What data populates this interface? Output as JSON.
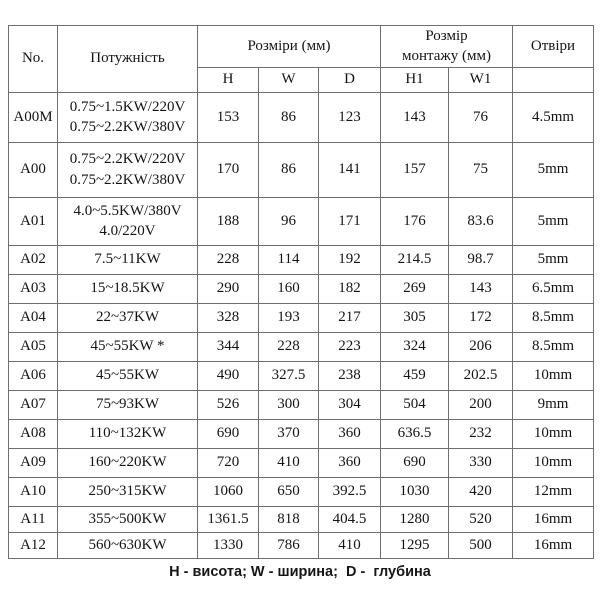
{
  "table": {
    "headers": {
      "no": "No.",
      "power": "Потужність",
      "dimensions": "Розміри (мм)",
      "mounting": "Розмір\nмонтажу (мм)",
      "holes": "Отвіри",
      "h": "H",
      "w": "W",
      "d": "D",
      "h1": "H1",
      "w1": "W1"
    },
    "rows": [
      {
        "no": "A00M",
        "power": "0.75~1.5KW/220V\n0.75~2.2KW/380V",
        "h": "153",
        "w": "86",
        "d": "123",
        "h1": "143",
        "w1": "76",
        "holes": "4.5mm"
      },
      {
        "no": "A00",
        "power": "0.75~2.2KW/220V\n0.75~2.2KW/380V",
        "h": "170",
        "w": "86",
        "d": "141",
        "h1": "157",
        "w1": "75",
        "holes": "5mm"
      },
      {
        "no": "A01",
        "power": "4.0~5.5KW/380V\n4.0/220V",
        "h": "188",
        "w": "96",
        "d": "171",
        "h1": "176",
        "w1": "83.6",
        "holes": "5mm"
      },
      {
        "no": "A02",
        "power": "7.5~11KW",
        "h": "228",
        "w": "114",
        "d": "192",
        "h1": "214.5",
        "w1": "98.7",
        "holes": "5mm"
      },
      {
        "no": "A03",
        "power": "15~18.5KW",
        "h": "290",
        "w": "160",
        "d": "182",
        "h1": "269",
        "w1": "143",
        "holes": "6.5mm"
      },
      {
        "no": "A04",
        "power": "22~37KW",
        "h": "328",
        "w": "193",
        "d": "217",
        "h1": "305",
        "w1": "172",
        "holes": "8.5mm"
      },
      {
        "no": "A05",
        "power": "45~55KW *",
        "h": "344",
        "w": "228",
        "d": "223",
        "h1": "324",
        "w1": "206",
        "holes": "8.5mm"
      },
      {
        "no": "A06",
        "power": "45~55KW",
        "h": "490",
        "w": "327.5",
        "d": "238",
        "h1": "459",
        "w1": "202.5",
        "holes": "10mm"
      },
      {
        "no": "A07",
        "power": "75~93KW",
        "h": "526",
        "w": "300",
        "d": "304",
        "h1": "504",
        "w1": "200",
        "holes": "9mm"
      },
      {
        "no": "A08",
        "power": "110~132KW",
        "h": "690",
        "w": "370",
        "d": "360",
        "h1": "636.5",
        "w1": "232",
        "holes": "10mm"
      },
      {
        "no": "A09",
        "power": "160~220KW",
        "h": "720",
        "w": "410",
        "d": "360",
        "h1": "690",
        "w1": "330",
        "holes": "10mm"
      },
      {
        "no": "A10",
        "power": "250~315KW",
        "h": "1060",
        "w": "650",
        "d": "392.5",
        "h1": "1030",
        "w1": "420",
        "holes": "12mm"
      },
      {
        "no": "A11",
        "power": "355~500KW",
        "h": "1361.5",
        "w": "818",
        "d": "404.5",
        "h1": "1280",
        "w1": "520",
        "holes": "16mm"
      },
      {
        "no": "A12",
        "power": "560~630KW",
        "h": "1330",
        "w": "786",
        "d": "410",
        "h1": "1295",
        "w1": "500",
        "holes": "16mm"
      }
    ]
  },
  "footer": {
    "legend": "Н - висота; W - ширина;  D -  глубина"
  }
}
